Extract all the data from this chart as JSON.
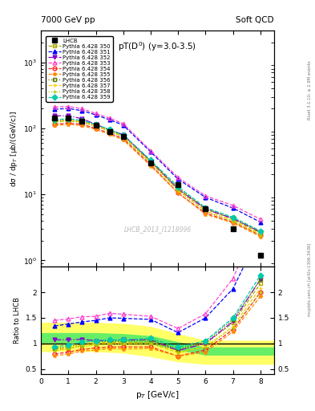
{
  "title_left": "7000 GeV pp",
  "title_right": "Soft QCD",
  "plot_title": "pT(D$^0$) (y=3.0-3.5)",
  "xlabel": "p$_T$ [GeV/c]",
  "ylabel_main": "dσ / dp$_T$ [μb/(GeV/c)]",
  "ylabel_ratio": "Ratio to LHCB",
  "watermark": "LHCB_2013_I1218996",
  "right_label": "mcplots.cern.ch [arXiv:1306.3436]",
  "rivet_label": "Rivet 3.1.10; ≥ 2.9M events",
  "lhcb_pt": [
    0.5,
    1.0,
    1.5,
    2.0,
    2.5,
    3.0,
    4.0,
    5.0,
    6.0,
    7.0,
    8.0
  ],
  "lhcb_val": [
    145,
    145,
    130,
    110,
    90,
    75,
    30,
    14,
    6.0,
    3.0,
    1.2
  ],
  "series": [
    {
      "label": "Pythia 6.428 350",
      "color": "#aaaa00",
      "linestyle": "--",
      "marker": "s",
      "mfc": "none",
      "pt": [
        0.5,
        1.0,
        1.5,
        2.0,
        2.5,
        3.0,
        4.0,
        5.0,
        6.0,
        7.0,
        8.0
      ],
      "val": [
        130,
        130,
        125,
        110,
        92,
        76,
        31,
        12,
        6.0,
        4.2,
        2.6
      ],
      "ratio": [
        0.9,
        0.9,
        0.96,
        1.0,
        1.02,
        1.01,
        1.03,
        0.86,
        1.0,
        1.4,
        2.17
      ]
    },
    {
      "label": "Pythia 6.428 351",
      "color": "#0000ff",
      "linestyle": "--",
      "marker": "^",
      "mfc": "#0000ff",
      "pt": [
        0.5,
        1.0,
        1.5,
        2.0,
        2.5,
        3.0,
        4.0,
        5.0,
        6.0,
        7.0,
        8.0
      ],
      "val": [
        195,
        200,
        185,
        160,
        135,
        112,
        44,
        17,
        9.0,
        6.2,
        3.8
      ],
      "ratio": [
        1.34,
        1.38,
        1.42,
        1.45,
        1.5,
        1.49,
        1.47,
        1.21,
        1.5,
        2.07,
        3.17
      ]
    },
    {
      "label": "Pythia 6.428 352",
      "color": "#8800cc",
      "linestyle": "-.",
      "marker": "v",
      "mfc": "#8800cc",
      "pt": [
        0.5,
        1.0,
        1.5,
        2.0,
        2.5,
        3.0,
        4.0,
        5.0,
        6.0,
        7.0,
        8.0
      ],
      "val": [
        155,
        155,
        140,
        115,
        95,
        80,
        32,
        12,
        6.0,
        4.3,
        2.7
      ],
      "ratio": [
        1.07,
        1.07,
        1.08,
        1.05,
        1.06,
        1.07,
        1.07,
        0.86,
        1.0,
        1.43,
        2.25
      ]
    },
    {
      "label": "Pythia 6.428 353",
      "color": "#ff44cc",
      "linestyle": "--",
      "marker": "^",
      "mfc": "none",
      "pt": [
        0.5,
        1.0,
        1.5,
        2.0,
        2.5,
        3.0,
        4.0,
        5.0,
        6.0,
        7.0,
        8.0
      ],
      "val": [
        210,
        215,
        198,
        168,
        143,
        118,
        46,
        18,
        9.5,
        6.8,
        4.2
      ],
      "ratio": [
        1.45,
        1.48,
        1.52,
        1.53,
        1.59,
        1.57,
        1.53,
        1.29,
        1.58,
        2.27,
        3.5
      ]
    },
    {
      "label": "Pythia 6.428 354",
      "color": "#ff2222",
      "linestyle": "--",
      "marker": "o",
      "mfc": "none",
      "pt": [
        0.5,
        1.0,
        1.5,
        2.0,
        2.5,
        3.0,
        4.0,
        5.0,
        6.0,
        7.0,
        8.0
      ],
      "val": [
        115,
        120,
        115,
        100,
        84,
        70,
        28,
        10.5,
        5.2,
        3.8,
        2.4
      ],
      "ratio": [
        0.79,
        0.83,
        0.88,
        0.91,
        0.93,
        0.93,
        0.93,
        0.75,
        0.87,
        1.27,
        2.0
      ]
    },
    {
      "label": "Pythia 6.428 355",
      "color": "#ff8800",
      "linestyle": "--",
      "marker": "*",
      "mfc": "#ff8800",
      "pt": [
        0.5,
        1.0,
        1.5,
        2.0,
        2.5,
        3.0,
        4.0,
        5.0,
        6.0,
        7.0,
        8.0
      ],
      "val": [
        110,
        115,
        110,
        96,
        81,
        67,
        27,
        10.5,
        5.0,
        3.7,
        2.3
      ],
      "ratio": [
        0.76,
        0.79,
        0.85,
        0.87,
        0.9,
        0.89,
        0.9,
        0.75,
        0.83,
        1.23,
        1.92
      ]
    },
    {
      "label": "Pythia 6.428 356",
      "color": "#557700",
      "linestyle": ":",
      "marker": "s",
      "mfc": "none",
      "pt": [
        0.5,
        1.0,
        1.5,
        2.0,
        2.5,
        3.0,
        4.0,
        5.0,
        6.0,
        7.0,
        8.0
      ],
      "val": [
        130,
        136,
        128,
        112,
        94,
        78,
        32,
        12.5,
        6.2,
        4.4,
        2.7
      ],
      "ratio": [
        0.9,
        0.94,
        0.98,
        1.02,
        1.04,
        1.04,
        1.07,
        0.89,
        1.03,
        1.47,
        2.25
      ]
    },
    {
      "label": "Pythia 6.428 357",
      "color": "#ffcc00",
      "linestyle": "--",
      "marker": "+",
      "mfc": "#ffcc00",
      "pt": [
        0.5,
        1.0,
        1.5,
        2.0,
        2.5,
        3.0,
        4.0,
        5.0,
        6.0,
        7.0,
        8.0
      ],
      "val": [
        125,
        132,
        125,
        109,
        91,
        75,
        30,
        11.5,
        5.6,
        4.0,
        2.5
      ],
      "ratio": [
        0.86,
        0.91,
        0.96,
        0.99,
        1.01,
        1.0,
        1.0,
        0.82,
        0.93,
        1.33,
        2.08
      ]
    },
    {
      "label": "Pythia 6.428 358",
      "color": "#aacc00",
      "linestyle": ":",
      "marker": "+",
      "mfc": "#aacc00",
      "pt": [
        0.5,
        1.0,
        1.5,
        2.0,
        2.5,
        3.0,
        4.0,
        5.0,
        6.0,
        7.0,
        8.0
      ],
      "val": [
        123,
        130,
        122,
        107,
        89,
        74,
        30,
        11.5,
        5.5,
        3.9,
        2.4
      ],
      "ratio": [
        0.85,
        0.9,
        0.94,
        0.97,
        0.99,
        0.99,
        1.0,
        0.82,
        0.92,
        1.3,
        2.0
      ]
    },
    {
      "label": "Pythia 6.428 359",
      "color": "#00ccaa",
      "linestyle": "--",
      "marker": "D",
      "mfc": "#00ccaa",
      "pt": [
        0.5,
        1.0,
        1.5,
        2.0,
        2.5,
        3.0,
        4.0,
        5.0,
        6.0,
        7.0,
        8.0
      ],
      "val": [
        135,
        140,
        132,
        115,
        96,
        80,
        33,
        13,
        6.3,
        4.5,
        2.8
      ],
      "ratio": [
        0.93,
        0.97,
        1.02,
        1.05,
        1.07,
        1.07,
        1.1,
        0.93,
        1.05,
        1.5,
        2.33
      ]
    }
  ],
  "yellow_band_x": [
    0.0,
    1.0,
    2.0,
    3.0,
    4.0,
    5.0,
    6.0,
    7.0,
    8.0,
    8.5
  ],
  "yellow_band_lo": [
    0.85,
    0.85,
    0.85,
    0.82,
    0.75,
    0.65,
    0.6,
    0.6,
    0.6,
    0.6
  ],
  "yellow_band_hi": [
    1.4,
    1.4,
    1.4,
    1.38,
    1.32,
    1.18,
    1.05,
    1.05,
    1.05,
    1.05
  ],
  "green_band_x": [
    0.0,
    1.0,
    2.0,
    3.0,
    4.0,
    5.0,
    6.0,
    7.0,
    8.0,
    8.5
  ],
  "green_band_lo": [
    1.02,
    1.02,
    1.05,
    1.05,
    1.0,
    0.88,
    0.78,
    0.78,
    0.78,
    0.78
  ],
  "green_band_hi": [
    1.2,
    1.2,
    1.2,
    1.18,
    1.14,
    1.02,
    0.92,
    0.92,
    0.92,
    0.92
  ],
  "ylim_main": [
    0.8,
    3000
  ],
  "ylim_ratio": [
    0.4,
    2.5
  ],
  "xlim": [
    0.0,
    8.5
  ],
  "ratio_yticks": [
    0.5,
    1.0,
    1.5,
    2.0
  ],
  "ratio_ytick_labels": [
    "0.5",
    "1",
    "1.5",
    "2"
  ]
}
